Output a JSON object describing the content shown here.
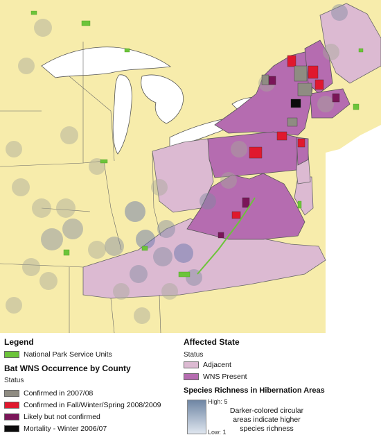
{
  "legend": {
    "title": "Legend",
    "nps_label": "National Park Service Units",
    "county_title": "Bat WNS Occurrence by County",
    "county_status_label": "Status",
    "county_items": [
      {
        "label": "Confirmed in 2007/08",
        "color": "#8f8c82"
      },
      {
        "label": "Confirmed in Fall/Winter/Spring 2008/2009",
        "color": "#e0182e"
      },
      {
        "label": "Likely but not confirmed",
        "color": "#7a1558"
      },
      {
        "label": "Mortality - Winter 2006/07",
        "color": "#0b0b0b"
      }
    ],
    "state_title": "Affected State",
    "state_status_label": "Status",
    "state_items": [
      {
        "label": "Adjacent",
        "color": "#dcbad2"
      },
      {
        "label": "WNS Present",
        "color": "#b56cb0"
      }
    ],
    "richness_title": "Species Richness in Hibernation Areas",
    "richness_high": "High: 5",
    "richness_low": "Low: 1",
    "richness_note": "Darker-colored circular areas indicate higher species richness"
  },
  "colors": {
    "background_state": "#f7ecab",
    "adjacent_state": "#dcbad2",
    "wns_state": "#b56cb0",
    "nps": "#6cc43a",
    "water": "#ffffff",
    "circle_high": "#5b6fa8",
    "circle_low": "#a7a89a"
  }
}
